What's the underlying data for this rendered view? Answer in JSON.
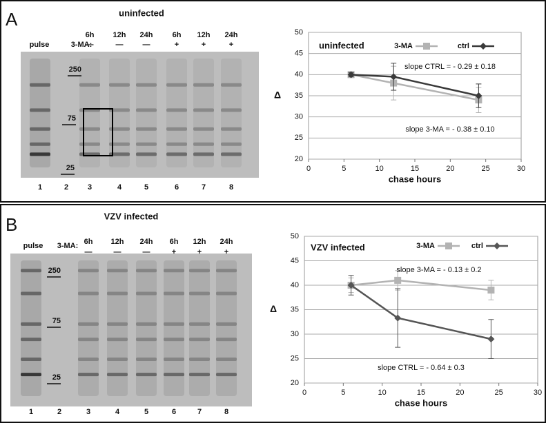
{
  "chart_data": [
    {
      "type": "line",
      "title": "uninfected",
      "xlabel": "chase hours",
      "ylabel": "Δ",
      "xlim": [
        0,
        30
      ],
      "xticks": [
        0,
        5,
        10,
        15,
        20,
        25,
        30
      ],
      "ylim": [
        20,
        50
      ],
      "yticks": [
        20,
        25,
        30,
        35,
        40,
        45,
        50
      ],
      "grid": true,
      "x": [
        6,
        12,
        24
      ],
      "series": [
        {
          "name": "3-MA",
          "color": "#b3b3b3",
          "marker": "square",
          "values": [
            40,
            38,
            34
          ],
          "errors": [
            0.5,
            4,
            3
          ]
        },
        {
          "name": "ctrl",
          "color": "#3a3a3a",
          "marker": "diamond",
          "values": [
            40,
            39.5,
            35
          ],
          "errors": [
            0.5,
            3.2,
            2.8
          ]
        }
      ],
      "annotations": [
        "slope CTRL = - 0.29 ± 0.18",
        "slope 3-MA = - 0.38 ± 0.10"
      ]
    },
    {
      "type": "line",
      "title": "VZV infected",
      "xlabel": "chase hours",
      "ylabel": "Δ",
      "xlim": [
        0,
        30
      ],
      "xticks": [
        0,
        5,
        10,
        15,
        20,
        25,
        30
      ],
      "ylim": [
        20,
        50
      ],
      "yticks": [
        20,
        25,
        30,
        35,
        40,
        45,
        50
      ],
      "grid": true,
      "x": [
        6,
        12,
        24
      ],
      "series": [
        {
          "name": "3-MA",
          "color": "#b3b3b3",
          "marker": "square",
          "values": [
            40,
            41,
            39
          ],
          "errors": [
            1.5,
            2,
            2
          ]
        },
        {
          "name": "ctrl",
          "color": "#555555",
          "marker": "diamond",
          "values": [
            40,
            33.3,
            29
          ],
          "errors": [
            2,
            6,
            4
          ]
        }
      ],
      "annotations": [
        "slope 3-MA = - 0.13 ± 0.2",
        "slope CTRL = - 0.64 ± 0.3"
      ]
    }
  ],
  "gels": [
    {
      "panel_label": "A",
      "title": "uninfected",
      "pulse_label": "pulse",
      "treatment_label": "3-MA:",
      "time_labels": [
        "6h",
        "12h",
        "24h",
        "6h",
        "12h",
        "24h"
      ],
      "treatment_signs": [
        "—",
        "—",
        "—",
        "+",
        "+",
        "+"
      ],
      "markers": [
        "250",
        "75",
        "25"
      ],
      "lane_numbers": [
        "1",
        "2",
        "3",
        "4",
        "5",
        "6",
        "7",
        "8"
      ]
    },
    {
      "panel_label": "B",
      "title": "VZV infected",
      "pulse_label": "pulse",
      "treatment_label": "3-MA:",
      "time_labels": [
        "6h",
        "12h",
        "24h",
        "6h",
        "12h",
        "24h"
      ],
      "treatment_signs": [
        "—",
        "—",
        "—",
        "+",
        "+",
        "+"
      ],
      "markers": [
        "250",
        "75",
        "25"
      ],
      "lane_numbers": [
        "1",
        "2",
        "3",
        "4",
        "5",
        "6",
        "7",
        "8"
      ]
    }
  ]
}
